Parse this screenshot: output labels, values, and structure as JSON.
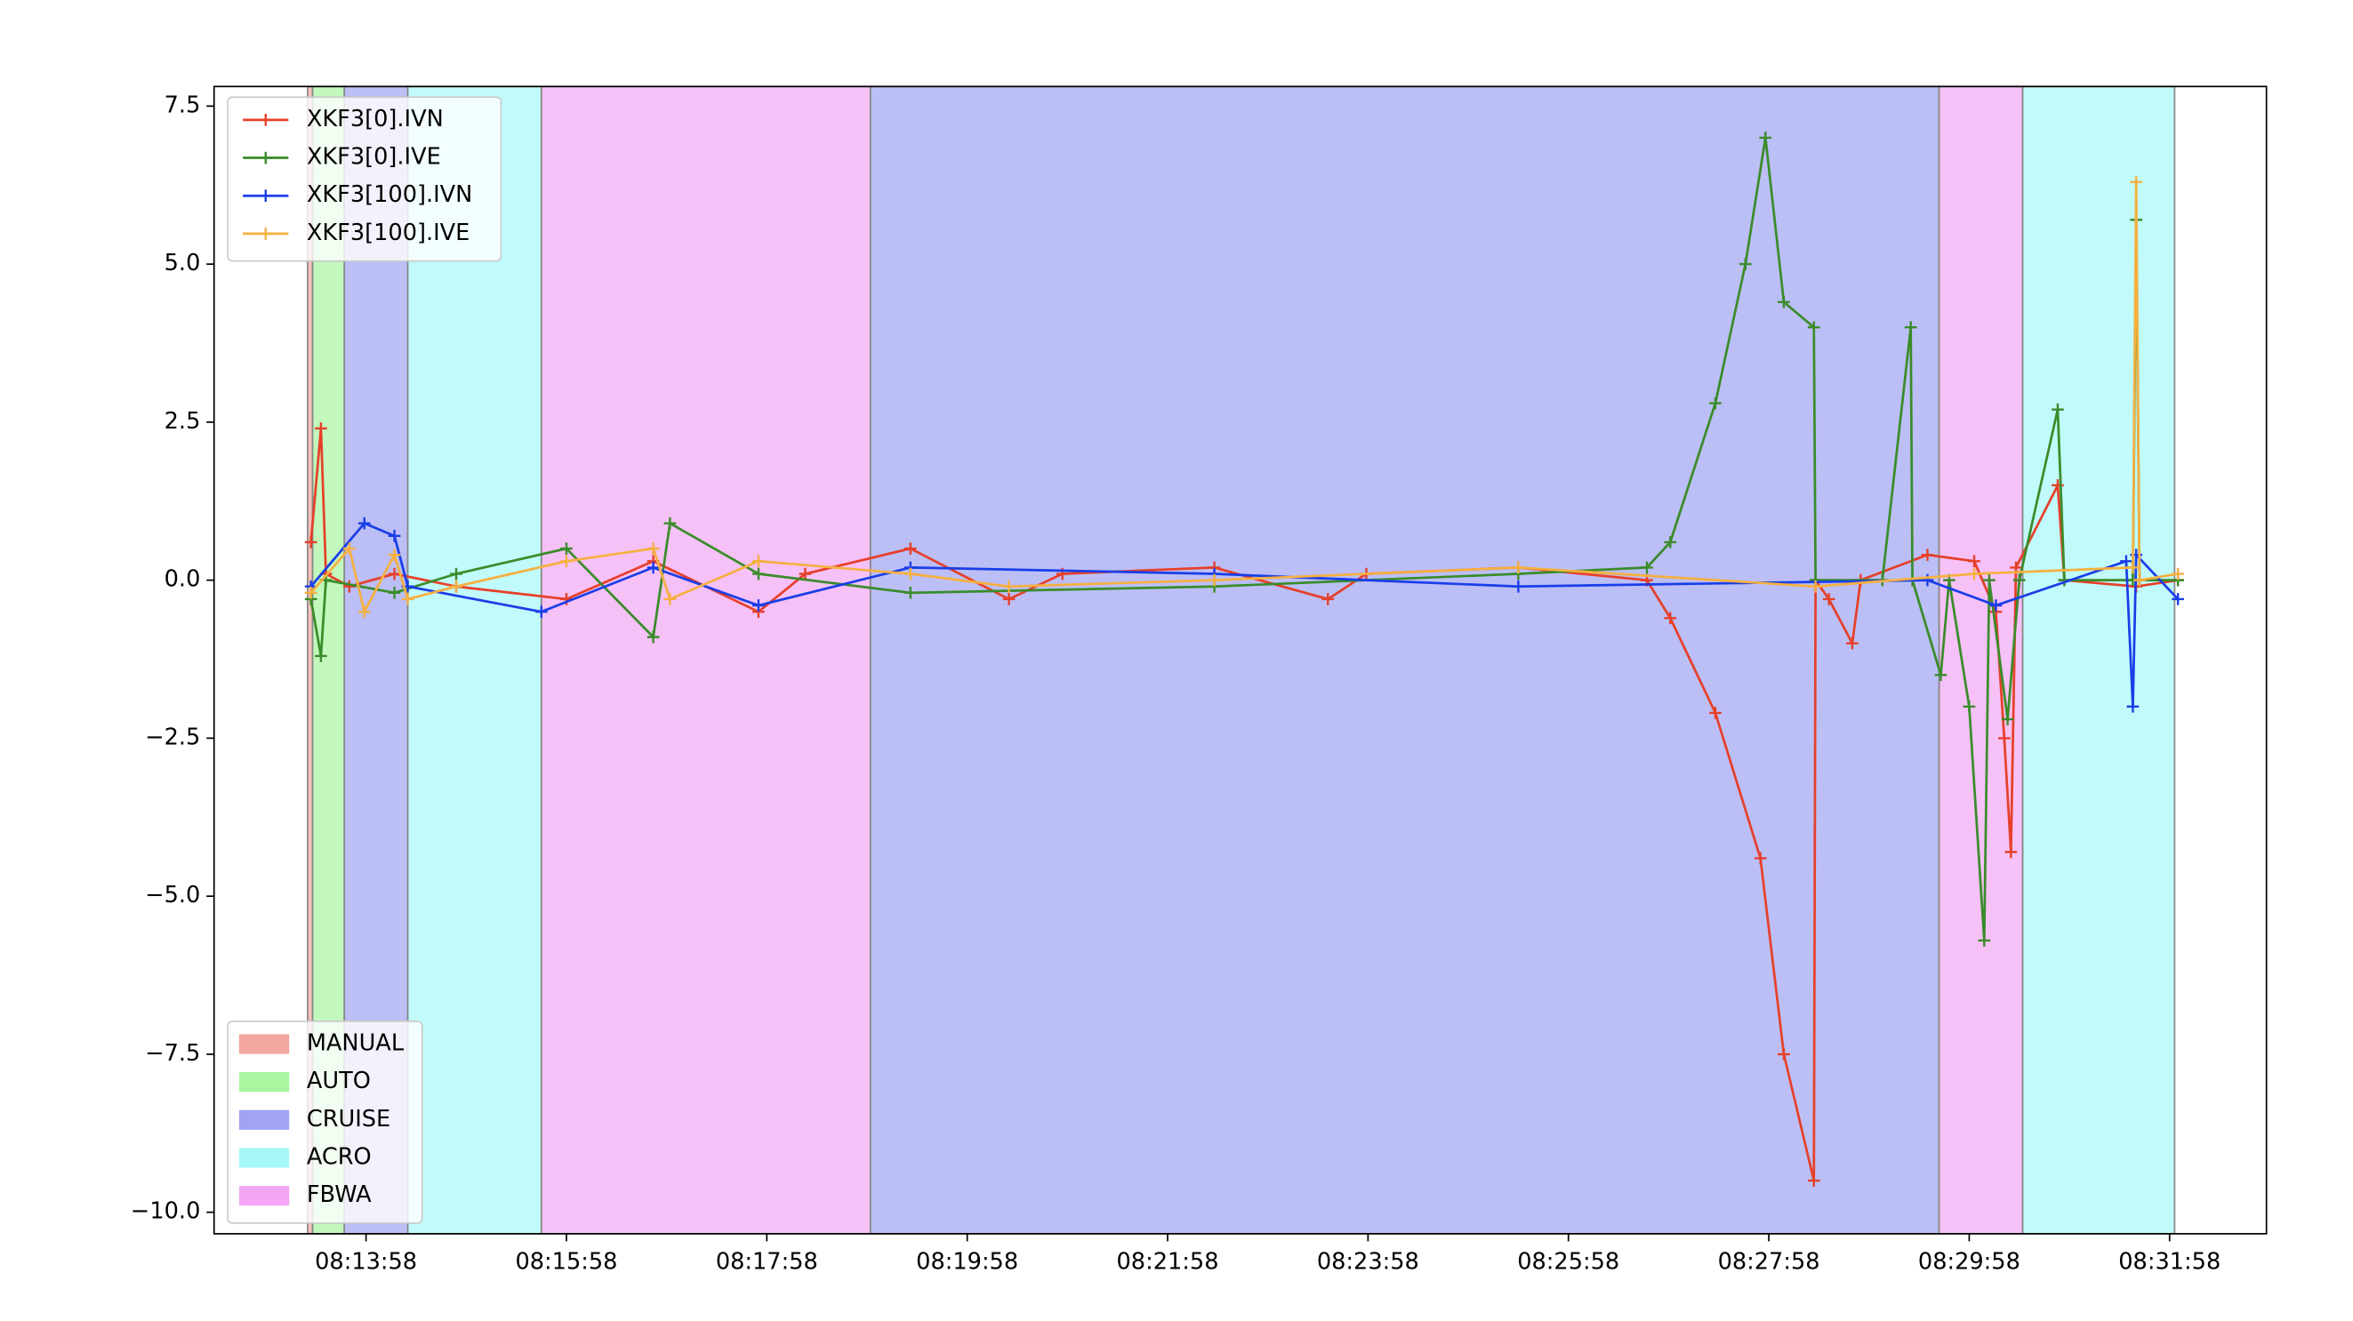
{
  "chart_data": {
    "type": "line",
    "xlim": [
      "08:12:27",
      "08:32:56"
    ],
    "xticks": [
      "08:13:58",
      "08:15:58",
      "08:17:58",
      "08:19:58",
      "08:21:58",
      "08:23:58",
      "08:25:58",
      "08:27:58",
      "08:29:58",
      "08:31:58"
    ],
    "ylim": [
      -10.34,
      7.81
    ],
    "yticks": [
      7.5,
      {
        "value": 5,
        "label": "5.0"
      },
      {
        "value": 2.5,
        "label": "2.5"
      },
      {
        "value": 0,
        "label": "0.0"
      },
      {
        "value": -2.5,
        "label": "−2.5"
      },
      {
        "value": -5,
        "label": "−5.0"
      },
      {
        "value": -7.5,
        "label": "−7.5"
      },
      {
        "value": -10,
        "label": "−10.0"
      }
    ],
    "legend": "upper left",
    "series": [
      {
        "name": "XKF3[0].IVN",
        "color": "#e6402a",
        "x": [
          "08:13:25",
          "08:13:31",
          "08:13:34",
          "08:13:48",
          "08:14:15",
          "08:14:52",
          "08:15:58",
          "08:16:50",
          "08:17:53",
          "08:18:21",
          "08:19:24",
          "08:20:23",
          "08:20:55",
          "08:22:26",
          "08:23:34",
          "08:23:57",
          "08:25:28",
          "08:26:45",
          "08:26:59",
          "08:27:26",
          "08:27:53",
          "08:28:07",
          "08:28:25",
          "08:28:26",
          "08:28:34",
          "08:28:48",
          "08:28:53",
          "08:29:33",
          "08:30:01",
          "08:30:14",
          "08:30:19",
          "08:30:23",
          "08:30:26",
          "08:30:51",
          "08:30:55",
          "08:31:38",
          "08:32:03"
        ],
        "values": [
          0.6,
          2.4,
          0.1,
          -0.1,
          0.1,
          -0.1,
          -0.3,
          0.3,
          -0.5,
          0.1,
          0.5,
          -0.3,
          0.1,
          0.2,
          -0.3,
          0.1,
          0.2,
          0.0,
          -0.6,
          -2.1,
          -4.4,
          -7.5,
          -9.5,
          0.0,
          -0.3,
          -1.0,
          0.0,
          0.4,
          0.3,
          -0.5,
          -2.5,
          -4.3,
          0.2,
          1.5,
          0.0,
          -0.1,
          0.0
        ]
      },
      {
        "name": "XKF3[0].IVE",
        "color": "#3a8c2a",
        "x": [
          "08:13:25",
          "08:13:31",
          "08:13:34",
          "08:14:15",
          "08:14:52",
          "08:15:58",
          "08:16:50",
          "08:17:00",
          "08:17:53",
          "08:19:24",
          "08:22:26",
          "08:25:28",
          "08:26:45",
          "08:26:59",
          "08:27:26",
          "08:27:44",
          "08:27:56",
          "08:28:07",
          "08:28:25",
          "08:28:26",
          "08:29:06",
          "08:29:23",
          "08:29:24",
          "08:29:41",
          "08:29:46",
          "08:29:58",
          "08:30:07",
          "08:30:10",
          "08:30:21",
          "08:30:28",
          "08:30:51",
          "08:30:55",
          "08:31:36",
          "08:31:38",
          "08:31:40",
          "08:32:03"
        ],
        "values": [
          -0.3,
          -1.2,
          0.0,
          -0.2,
          0.1,
          0.5,
          -0.9,
          0.9,
          0.1,
          -0.2,
          -0.1,
          0.1,
          0.2,
          0.6,
          2.8,
          5.0,
          7.0,
          4.4,
          4.0,
          0.0,
          0.0,
          4.0,
          0.0,
          -1.5,
          0.0,
          -2.0,
          -5.7,
          0.0,
          -2.2,
          0.0,
          2.7,
          0.0,
          0.0,
          5.7,
          0.0,
          0.0
        ]
      },
      {
        "name": "XKF3[100].IVN",
        "color": "#1a3ee8",
        "x": [
          "08:13:25",
          "08:13:57",
          "08:14:15",
          "08:14:23",
          "08:15:43",
          "08:16:50",
          "08:17:53",
          "08:19:24",
          "08:22:26",
          "08:25:28",
          "08:29:33",
          "08:30:14",
          "08:31:32",
          "08:31:36",
          "08:31:38",
          "08:32:03"
        ],
        "values": [
          -0.1,
          0.9,
          0.7,
          -0.1,
          -0.5,
          0.2,
          -0.4,
          0.2,
          0.1,
          -0.1,
          0.0,
          -0.4,
          0.3,
          -2.0,
          0.4,
          -0.3
        ]
      },
      {
        "name": "XKF3[100].IVE",
        "color": "#f5b040",
        "x": [
          "08:13:25",
          "08:13:48",
          "08:13:57",
          "08:14:15",
          "08:14:23",
          "08:14:52",
          "08:15:58",
          "08:16:50",
          "08:17:00",
          "08:17:53",
          "08:19:24",
          "08:20:23",
          "08:22:26",
          "08:25:28",
          "08:28:26",
          "08:30:01",
          "08:31:36",
          "08:31:38",
          "08:31:40",
          "08:32:03"
        ],
        "values": [
          -0.2,
          0.5,
          -0.5,
          0.4,
          -0.3,
          -0.1,
          0.3,
          0.5,
          -0.3,
          0.3,
          0.1,
          -0.1,
          0.0,
          0.2,
          -0.1,
          0.1,
          0.2,
          6.3,
          0.0,
          0.1
        ]
      }
    ],
    "mode_legend": "lower left",
    "modes": [
      {
        "name": "MANUAL",
        "color": "#f4a6a0",
        "spans": [
          [
            "08:13:23",
            "08:13:26"
          ]
        ]
      },
      {
        "name": "AUTO",
        "color": "#a9f5a0",
        "spans": [
          [
            "08:13:26",
            "08:13:45"
          ]
        ]
      },
      {
        "name": "CRUISE",
        "color": "#a0a4f2",
        "spans": [
          [
            "08:13:45",
            "08:14:23"
          ],
          [
            "08:19:00",
            "08:29:40"
          ]
        ]
      },
      {
        "name": "ACRO",
        "color": "#a6f8f8",
        "spans": [
          [
            "08:14:23",
            "08:15:43"
          ],
          [
            "08:30:30",
            "08:32:01"
          ]
        ]
      },
      {
        "name": "FBWA",
        "color": "#f2a6f4",
        "spans": [
          [
            "08:15:43",
            "08:19:00"
          ],
          [
            "08:29:40",
            "08:30:30"
          ]
        ]
      }
    ]
  }
}
